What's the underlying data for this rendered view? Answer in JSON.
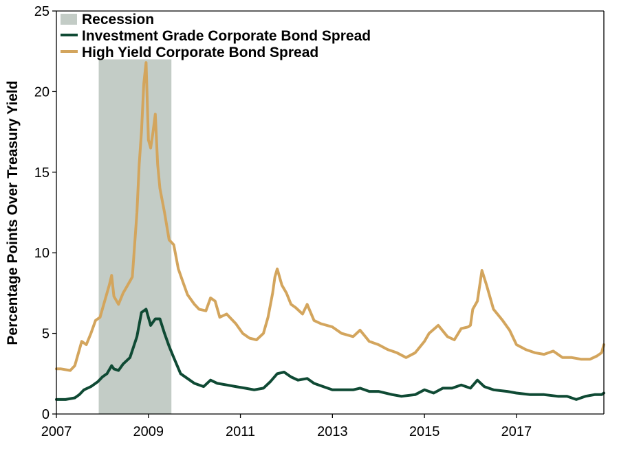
{
  "chart_data": {
    "type": "line",
    "title": "",
    "xlabel": "",
    "ylabel": "Percentage Points Over Treasury Yield",
    "xlim": [
      2007.0,
      2018.9
    ],
    "ylim": [
      0,
      25
    ],
    "x_ticks": [
      2007,
      2009,
      2011,
      2013,
      2015,
      2017
    ],
    "y_ticks": [
      0,
      5,
      10,
      15,
      20,
      25
    ],
    "grid": false,
    "legend_position": "top-left",
    "recession": {
      "name": "Recession",
      "start": 2007.92,
      "end": 2009.5,
      "color": "#c3ccc6"
    },
    "series": [
      {
        "name": "Investment Grade Corporate Bond Spread",
        "color": "#0f4a34",
        "x": [
          2007.0,
          2007.2,
          2007.4,
          2007.5,
          2007.6,
          2007.75,
          2007.9,
          2008.0,
          2008.1,
          2008.2,
          2008.25,
          2008.35,
          2008.45,
          2008.6,
          2008.75,
          2008.85,
          2008.95,
          2009.05,
          2009.15,
          2009.25,
          2009.35,
          2009.45,
          2009.55,
          2009.7,
          2009.85,
          2010.0,
          2010.2,
          2010.35,
          2010.5,
          2010.7,
          2010.9,
          2011.1,
          2011.3,
          2011.5,
          2011.65,
          2011.8,
          2011.95,
          2012.1,
          2012.25,
          2012.45,
          2012.6,
          2012.8,
          2013.0,
          2013.2,
          2013.45,
          2013.6,
          2013.8,
          2014.0,
          2014.3,
          2014.5,
          2014.8,
          2015.0,
          2015.2,
          2015.4,
          2015.6,
          2015.8,
          2016.0,
          2016.15,
          2016.3,
          2016.5,
          2016.8,
          2017.0,
          2017.3,
          2017.6,
          2017.9,
          2018.1,
          2018.3,
          2018.5,
          2018.7,
          2018.85,
          2018.9
        ],
        "values": [
          0.9,
          0.9,
          1.0,
          1.2,
          1.5,
          1.7,
          2.0,
          2.3,
          2.5,
          3.0,
          2.8,
          2.7,
          3.1,
          3.5,
          4.8,
          6.3,
          6.5,
          5.5,
          5.9,
          5.9,
          5.0,
          4.2,
          3.5,
          2.5,
          2.2,
          1.9,
          1.7,
          2.1,
          1.9,
          1.8,
          1.7,
          1.6,
          1.5,
          1.6,
          2.0,
          2.5,
          2.6,
          2.3,
          2.1,
          2.2,
          1.9,
          1.7,
          1.5,
          1.5,
          1.5,
          1.6,
          1.4,
          1.4,
          1.2,
          1.1,
          1.2,
          1.5,
          1.3,
          1.6,
          1.6,
          1.8,
          1.6,
          2.1,
          1.7,
          1.5,
          1.4,
          1.3,
          1.2,
          1.2,
          1.1,
          1.1,
          0.9,
          1.1,
          1.2,
          1.2,
          1.3
        ]
      },
      {
        "name": "High Yield Corporate Bond Spread",
        "color": "#d3a55d",
        "x": [
          2007.0,
          2007.1,
          2007.3,
          2007.4,
          2007.55,
          2007.65,
          2007.75,
          2007.85,
          2007.95,
          2008.05,
          2008.15,
          2008.2,
          2008.25,
          2008.35,
          2008.45,
          2008.55,
          2008.65,
          2008.75,
          2008.8,
          2008.85,
          2008.9,
          2008.95,
          2009.0,
          2009.05,
          2009.1,
          2009.15,
          2009.2,
          2009.25,
          2009.35,
          2009.45,
          2009.55,
          2009.65,
          2009.75,
          2009.85,
          2010.0,
          2010.1,
          2010.25,
          2010.35,
          2010.45,
          2010.55,
          2010.7,
          2010.9,
          2011.05,
          2011.2,
          2011.35,
          2011.5,
          2011.6,
          2011.7,
          2011.75,
          2011.8,
          2011.9,
          2012.0,
          2012.1,
          2012.2,
          2012.35,
          2012.45,
          2012.6,
          2012.75,
          2013.0,
          2013.2,
          2013.45,
          2013.6,
          2013.8,
          2014.0,
          2014.2,
          2014.4,
          2014.6,
          2014.8,
          2015.0,
          2015.1,
          2015.3,
          2015.5,
          2015.65,
          2015.8,
          2015.95,
          2016.0,
          2016.05,
          2016.15,
          2016.25,
          2016.35,
          2016.5,
          2016.7,
          2016.85,
          2017.0,
          2017.2,
          2017.4,
          2017.6,
          2017.8,
          2018.0,
          2018.2,
          2018.4,
          2018.6,
          2018.75,
          2018.85,
          2018.9
        ],
        "values": [
          2.8,
          2.8,
          2.7,
          3.0,
          4.5,
          4.3,
          5.0,
          5.8,
          6.0,
          7.0,
          8.0,
          8.6,
          7.3,
          6.8,
          7.5,
          8.0,
          8.5,
          12.5,
          15.5,
          17.5,
          20.5,
          21.8,
          17.0,
          16.5,
          17.5,
          18.6,
          15.5,
          14.0,
          12.5,
          10.8,
          10.5,
          9.0,
          8.2,
          7.4,
          6.8,
          6.5,
          6.4,
          7.2,
          7.0,
          6.0,
          6.2,
          5.6,
          5.0,
          4.7,
          4.6,
          5.0,
          6.0,
          7.5,
          8.5,
          9.0,
          8.0,
          7.5,
          6.8,
          6.6,
          6.2,
          6.8,
          5.8,
          5.6,
          5.4,
          5.0,
          4.8,
          5.2,
          4.5,
          4.3,
          4.0,
          3.8,
          3.5,
          3.8,
          4.5,
          5.0,
          5.5,
          4.8,
          4.6,
          5.3,
          5.4,
          5.5,
          6.5,
          7.0,
          8.9,
          8.0,
          6.5,
          5.8,
          5.2,
          4.3,
          4.0,
          3.8,
          3.7,
          3.9,
          3.5,
          3.5,
          3.4,
          3.4,
          3.6,
          3.8,
          4.3
        ]
      }
    ]
  }
}
